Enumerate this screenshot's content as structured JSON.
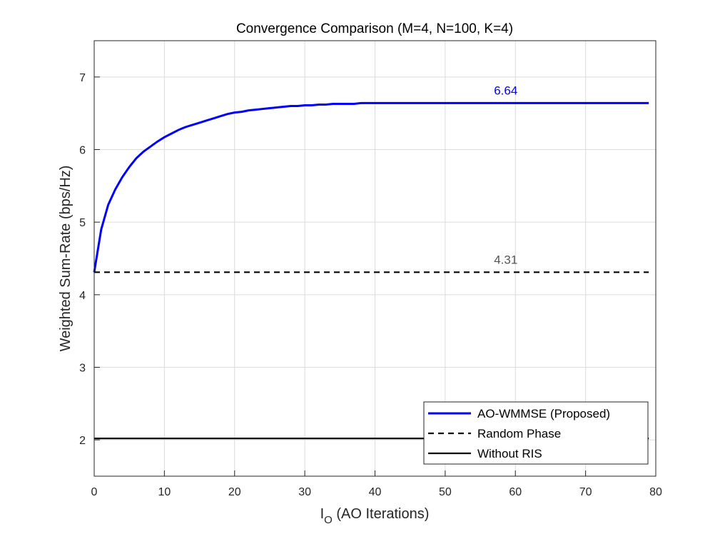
{
  "chart_data": {
    "type": "line",
    "title": "Convergence Comparison (M=4, N=100, K=4)",
    "xlabel_main": "I",
    "xlabel_sub": "O",
    "xlabel_rest": " (AO Iterations)",
    "ylabel": "Weighted Sum-Rate (bps/Hz)",
    "xlim": [
      0,
      80
    ],
    "ylim": [
      1.5,
      7.5
    ],
    "xticks": [
      0,
      10,
      20,
      30,
      40,
      50,
      60,
      70,
      80
    ],
    "yticks": [
      2,
      3,
      4,
      5,
      6,
      7
    ],
    "grid": true,
    "legend_placement": "bottom-right",
    "series": [
      {
        "name": "AO-WMMSE (Proposed)",
        "color": "#0000ff",
        "style": "solid",
        "x_start": 0,
        "x_end": 79,
        "values": [
          4.31,
          4.9,
          5.24,
          5.45,
          5.62,
          5.76,
          5.88,
          5.97,
          6.04,
          6.11,
          6.17,
          6.22,
          6.27,
          6.31,
          6.34,
          6.37,
          6.4,
          6.43,
          6.46,
          6.49,
          6.51,
          6.52,
          6.54,
          6.55,
          6.56,
          6.57,
          6.58,
          6.59,
          6.6,
          6.6,
          6.61,
          6.61,
          6.62,
          6.62,
          6.63,
          6.63,
          6.63,
          6.63,
          6.64,
          6.64,
          6.64,
          6.64,
          6.64,
          6.64,
          6.64,
          6.64,
          6.64,
          6.64,
          6.64,
          6.64,
          6.64,
          6.64,
          6.64,
          6.64,
          6.64,
          6.64,
          6.64,
          6.64,
          6.64,
          6.64,
          6.64,
          6.64,
          6.64,
          6.64,
          6.64,
          6.64,
          6.64,
          6.64,
          6.64,
          6.64,
          6.64,
          6.64,
          6.64,
          6.64,
          6.64,
          6.64,
          6.64,
          6.64,
          6.64,
          6.64
        ]
      },
      {
        "name": "Random Phase",
        "color": "#000000",
        "style": "dashed",
        "x_start": 0,
        "x_end": 79,
        "constant": 4.31
      },
      {
        "name": "Without RIS",
        "color": "#000000",
        "style": "solid",
        "x_start": 0,
        "x_end": 79,
        "constant": 2.02
      }
    ],
    "annotations": [
      {
        "text": "6.64",
        "x": 57,
        "y": 6.64,
        "color": "#0000ff"
      },
      {
        "text": "4.31",
        "x": 57,
        "y": 4.31,
        "color": "#555555"
      }
    ]
  }
}
